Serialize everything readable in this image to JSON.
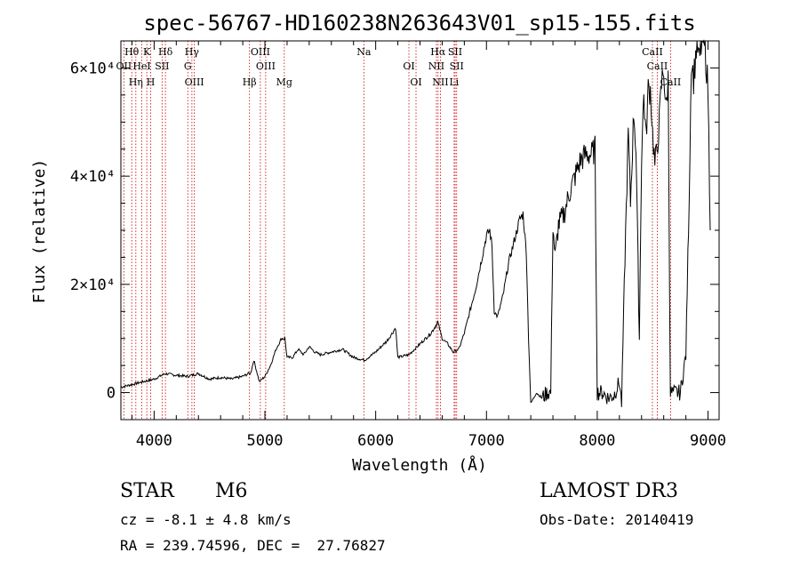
{
  "chart_data": {
    "type": "line",
    "title": "spec-56767-HD160238N263643V01_sp15-155.fits",
    "xlabel": "Wavelength (Å)",
    "ylabel": "Flux (relative)",
    "xlim": [
      3700,
      9100
    ],
    "ylim": [
      -5000,
      65000
    ],
    "x_ticks": [
      {
        "value": 4000,
        "label": "4000"
      },
      {
        "value": 5000,
        "label": "5000"
      },
      {
        "value": 6000,
        "label": "6000"
      },
      {
        "value": 7000,
        "label": "7000"
      },
      {
        "value": 8000,
        "label": "8000"
      },
      {
        "value": 9000,
        "label": "9000"
      }
    ],
    "y_ticks": [
      {
        "value": 0,
        "label": "0"
      },
      {
        "value": 20000,
        "label": "2×10⁴"
      },
      {
        "value": 40000,
        "label": "4×10⁴"
      },
      {
        "value": 60000,
        "label": "6×10⁴"
      }
    ],
    "series": [
      {
        "name": "flux",
        "x": [
          3700,
          3800,
          3900,
          4000,
          4100,
          4200,
          4300,
          4400,
          4500,
          4600,
          4700,
          4800,
          4850,
          4870,
          4900,
          4950,
          5000,
          5050,
          5100,
          5150,
          5180,
          5200,
          5250,
          5300,
          5350,
          5400,
          5450,
          5500,
          5600,
          5700,
          5800,
          5900,
          6000,
          6100,
          6150,
          6180,
          6200,
          6300,
          6400,
          6500,
          6560,
          6600,
          6650,
          6700,
          6750,
          6800,
          6900,
          7000,
          7030,
          7050,
          7070,
          7100,
          7150,
          7200,
          7250,
          7300,
          7330,
          7360,
          7380,
          7400,
          7450,
          7500,
          7550,
          7580,
          7600,
          7620,
          7650,
          7700,
          7750,
          7800,
          7850,
          7900,
          7950,
          7980,
          8000,
          8050,
          8100,
          8150,
          8200,
          8220,
          8250,
          8280,
          8300,
          8330,
          8350,
          8380,
          8400,
          8420,
          8440,
          8460,
          8480,
          8500,
          8520,
          8540,
          8560,
          8580,
          8600,
          8620,
          8640,
          8660,
          8680,
          8700,
          8750,
          8800,
          8830,
          8850,
          8870,
          8900,
          8920,
          8950,
          8980,
          9000,
          9020
        ],
        "values": [
          1000,
          1500,
          2000,
          2500,
          3500,
          3200,
          3000,
          3500,
          2500,
          2800,
          2500,
          3000,
          3500,
          3500,
          6000,
          2000,
          3000,
          5000,
          8000,
          10000,
          10000,
          6500,
          6500,
          8000,
          7000,
          8500,
          7500,
          7000,
          7500,
          8000,
          6500,
          6000,
          7500,
          9500,
          11000,
          12000,
          6500,
          7000,
          9000,
          11000,
          13000,
          10000,
          9000,
          7500,
          8000,
          11000,
          19000,
          29000,
          30000,
          27000,
          15000,
          14000,
          18000,
          24000,
          28000,
          32000,
          33000,
          26000,
          10000,
          -2000,
          0,
          -1000,
          0,
          0,
          31000,
          25000,
          31000,
          33000,
          37000,
          40000,
          43000,
          44000,
          44000,
          45000,
          0,
          0,
          -1000,
          -500,
          2000,
          -2000,
          25000,
          48000,
          35000,
          52000,
          45000,
          10000,
          44000,
          55000,
          47000,
          56000,
          56000,
          48000,
          42000,
          45000,
          50000,
          57000,
          60000,
          52000,
          58000,
          0,
          0,
          0,
          0,
          7000,
          37000,
          62000,
          58000,
          65000,
          61000,
          66000,
          62000,
          56000,
          30000
        ]
      }
    ],
    "lines": [
      {
        "label": "Hθ",
        "wl": 3798
      },
      {
        "label": "OII",
        "wl": 3727
      },
      {
        "label": "Hη",
        "wl": 3835
      },
      {
        "label": "K",
        "wl": 3934
      },
      {
        "label": "HeI",
        "wl": 3889
      },
      {
        "label": "H",
        "wl": 3969
      },
      {
        "label": "Hδ",
        "wl": 4102
      },
      {
        "label": "SII",
        "wl": 4072
      },
      {
        "label": "OIII",
        "wl": 4363
      },
      {
        "label": "Hγ",
        "wl": 4341
      },
      {
        "label": "G",
        "wl": 4304
      },
      {
        "label": "Hβ",
        "wl": 4861
      },
      {
        "label": "OIII",
        "wl": 4959
      },
      {
        "label": "OIII",
        "wl": 5007
      },
      {
        "label": "Mg",
        "wl": 5175
      },
      {
        "label": "Na",
        "wl": 5893
      },
      {
        "label": "OI",
        "wl": 6300
      },
      {
        "label": "OI",
        "wl": 6364
      },
      {
        "label": "Hα",
        "wl": 6563
      },
      {
        "label": "NII",
        "wl": 6548
      },
      {
        "label": "NII",
        "wl": 6584
      },
      {
        "label": "SII",
        "wl": 6717
      },
      {
        "label": "SII",
        "wl": 6731
      },
      {
        "label": "Li",
        "wl": 6708
      },
      {
        "label": "CaII",
        "wl": 8498
      },
      {
        "label": "CaII",
        "wl": 8542
      },
      {
        "label": "CaII",
        "wl": 8662
      }
    ]
  },
  "info": {
    "class_label": "STAR",
    "subclass": "M6",
    "survey": "LAMOST DR3",
    "redshift": "cz = -8.1 ± 4.8 km/s",
    "obs_date": "Obs-Date: 20140419",
    "coords": "RA = 239.74596, DEC =  27.76827"
  },
  "colors": {
    "line": "#000000",
    "marker": "#cc0000",
    "background": "#ffffff"
  }
}
